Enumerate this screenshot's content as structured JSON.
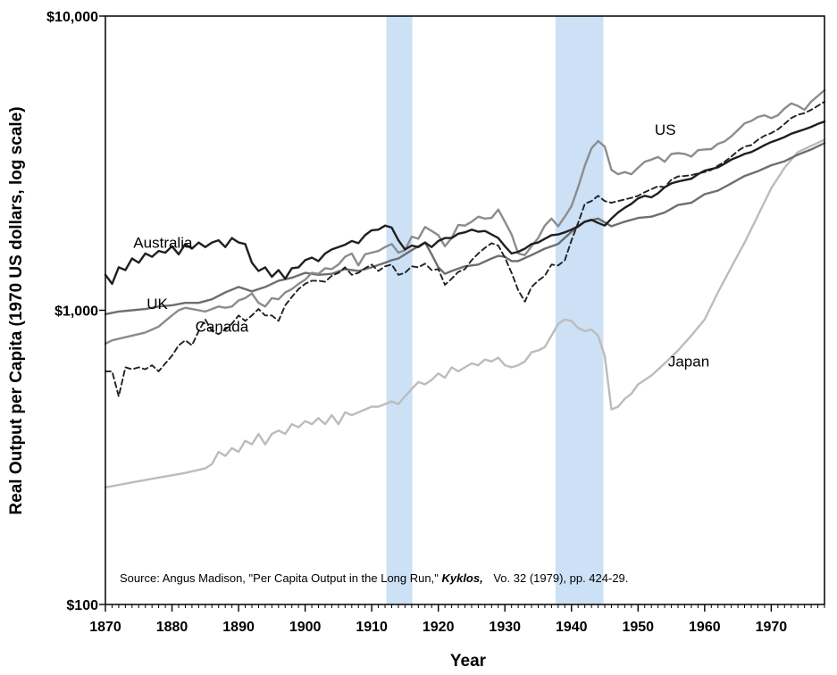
{
  "chart_data": {
    "type": "line",
    "xlabel": "Year",
    "ylabel": "Real Output per Capita (1970 US dollars, log scale)",
    "xlim": [
      1870,
      1978
    ],
    "ylim": [
      100,
      10000
    ],
    "y_scale": "log",
    "x_ticks": [
      1870,
      1880,
      1890,
      1900,
      1910,
      1920,
      1930,
      1940,
      1950,
      1960,
      1970
    ],
    "y_ticks": [
      {
        "value": 100,
        "label": "$100"
      },
      {
        "value": 1000,
        "label": "$1,000"
      },
      {
        "value": 10000,
        "label": "$10,000"
      }
    ],
    "grid": false,
    "legend": "none",
    "shaded_periods": [
      {
        "start": 1912.2,
        "end": 1916.1,
        "color": "#cce1f5"
      },
      {
        "start": 1937.6,
        "end": 1944.8,
        "color": "#cce1f5"
      }
    ],
    "series": [
      {
        "name": "Australia",
        "color": "#1f1f1f",
        "width": 2.4,
        "dash": "",
        "label_pos": [
          1874.2,
          1630
        ],
        "x": [
          1870,
          1871,
          1872,
          1873,
          1874,
          1875,
          1876,
          1877,
          1878,
          1879,
          1880,
          1881,
          1882,
          1883,
          1884,
          1885,
          1886,
          1887,
          1888,
          1889,
          1890,
          1891,
          1892,
          1893,
          1894,
          1895,
          1896,
          1897,
          1898,
          1899,
          1900,
          1901,
          1902,
          1903,
          1904,
          1905,
          1906,
          1907,
          1908,
          1909,
          1910,
          1911,
          1912,
          1913,
          1914,
          1915,
          1916,
          1917,
          1918,
          1919,
          1920,
          1921,
          1922,
          1923,
          1924,
          1925,
          1926,
          1927,
          1928,
          1929,
          1930,
          1931,
          1932,
          1933,
          1934,
          1935,
          1936,
          1937,
          1938,
          1939,
          1940,
          1941,
          1942,
          1943,
          1944,
          1945,
          1946,
          1947,
          1948,
          1949,
          1950,
          1951,
          1952,
          1953,
          1954,
          1955,
          1956,
          1957,
          1958,
          1959,
          1960,
          1961,
          1962,
          1963,
          1964,
          1965,
          1966,
          1967,
          1968,
          1969,
          1970,
          1971,
          1972,
          1973,
          1974,
          1975,
          1976,
          1977,
          1978
        ],
        "values": [
          1320,
          1230,
          1400,
          1370,
          1500,
          1450,
          1560,
          1520,
          1590,
          1570,
          1650,
          1550,
          1680,
          1620,
          1700,
          1640,
          1700,
          1730,
          1640,
          1760,
          1700,
          1680,
          1450,
          1360,
          1400,
          1300,
          1370,
          1280,
          1390,
          1400,
          1480,
          1510,
          1470,
          1560,
          1610,
          1640,
          1670,
          1720,
          1690,
          1800,
          1870,
          1880,
          1940,
          1910,
          1730,
          1610,
          1660,
          1640,
          1700,
          1640,
          1720,
          1760,
          1760,
          1820,
          1840,
          1880,
          1850,
          1860,
          1810,
          1760,
          1650,
          1560,
          1580,
          1620,
          1680,
          1700,
          1750,
          1800,
          1810,
          1840,
          1880,
          1930,
          2000,
          2030,
          1980,
          1940,
          2050,
          2150,
          2230,
          2300,
          2400,
          2450,
          2420,
          2500,
          2620,
          2700,
          2740,
          2770,
          2800,
          2900,
          2980,
          3020,
          3060,
          3150,
          3250,
          3320,
          3400,
          3450,
          3540,
          3640,
          3730,
          3800,
          3880,
          3980,
          4050,
          4120,
          4200,
          4300,
          4380
        ]
      },
      {
        "name": "US",
        "color": "#8c8c8c",
        "width": 2.4,
        "dash": "",
        "label_pos": [
          1952.5,
          3950
        ],
        "x": [
          1870,
          1871,
          1872,
          1873,
          1874,
          1875,
          1876,
          1877,
          1878,
          1879,
          1880,
          1881,
          1882,
          1883,
          1884,
          1885,
          1886,
          1887,
          1888,
          1889,
          1890,
          1891,
          1892,
          1893,
          1894,
          1895,
          1896,
          1897,
          1898,
          1899,
          1900,
          1901,
          1902,
          1903,
          1904,
          1905,
          1906,
          1907,
          1908,
          1909,
          1910,
          1911,
          1912,
          1913,
          1914,
          1915,
          1916,
          1917,
          1918,
          1919,
          1920,
          1921,
          1922,
          1923,
          1924,
          1925,
          1926,
          1927,
          1928,
          1929,
          1930,
          1931,
          1932,
          1933,
          1934,
          1935,
          1936,
          1937,
          1938,
          1939,
          1940,
          1941,
          1942,
          1943,
          1944,
          1945,
          1946,
          1947,
          1948,
          1949,
          1950,
          1951,
          1952,
          1953,
          1954,
          1955,
          1956,
          1957,
          1958,
          1959,
          1960,
          1961,
          1962,
          1963,
          1964,
          1965,
          1966,
          1967,
          1968,
          1969,
          1970,
          1971,
          1972,
          1973,
          1974,
          1975,
          1976,
          1977,
          1978
        ],
        "values": [
          770,
          790,
          800,
          810,
          820,
          830,
          840,
          860,
          880,
          920,
          960,
          1000,
          1020,
          1010,
          1000,
          990,
          1010,
          1030,
          1020,
          1030,
          1080,
          1100,
          1140,
          1060,
          1030,
          1100,
          1090,
          1150,
          1180,
          1230,
          1270,
          1340,
          1330,
          1390,
          1380,
          1430,
          1520,
          1560,
          1420,
          1550,
          1570,
          1590,
          1640,
          1680,
          1570,
          1600,
          1780,
          1750,
          1920,
          1860,
          1800,
          1650,
          1760,
          1950,
          1940,
          2000,
          2080,
          2050,
          2060,
          2200,
          2000,
          1810,
          1560,
          1540,
          1650,
          1760,
          1940,
          2050,
          1930,
          2080,
          2260,
          2620,
          3100,
          3550,
          3760,
          3600,
          3000,
          2900,
          2950,
          2900,
          3050,
          3200,
          3250,
          3320,
          3200,
          3400,
          3420,
          3400,
          3330,
          3500,
          3520,
          3530,
          3680,
          3750,
          3900,
          4100,
          4320,
          4400,
          4540,
          4600,
          4500,
          4600,
          4850,
          5050,
          4950,
          4800,
          5120,
          5350,
          5600
        ]
      },
      {
        "name": "UK",
        "color": "#6e6e6e",
        "width": 2.4,
        "dash": "",
        "label_pos": [
          1876.2,
          1010
        ],
        "x": [
          1870,
          1872,
          1874,
          1876,
          1878,
          1880,
          1882,
          1884,
          1886,
          1888,
          1890,
          1892,
          1894,
          1896,
          1898,
          1900,
          1902,
          1904,
          1906,
          1908,
          1910,
          1912,
          1913,
          1914,
          1916,
          1918,
          1919,
          1920,
          1921,
          1922,
          1924,
          1926,
          1928,
          1929,
          1930,
          1931,
          1932,
          1934,
          1936,
          1938,
          1940,
          1942,
          1944,
          1946,
          1948,
          1950,
          1952,
          1954,
          1956,
          1958,
          1960,
          1962,
          1964,
          1966,
          1968,
          1970,
          1972,
          1974,
          1976,
          1978
        ],
        "values": [
          970,
          990,
          1000,
          1010,
          1030,
          1040,
          1060,
          1060,
          1090,
          1150,
          1200,
          1160,
          1200,
          1260,
          1290,
          1340,
          1320,
          1330,
          1380,
          1360,
          1400,
          1450,
          1480,
          1500,
          1600,
          1700,
          1550,
          1400,
          1330,
          1360,
          1410,
          1430,
          1500,
          1530,
          1520,
          1470,
          1470,
          1540,
          1620,
          1680,
          1850,
          2000,
          2050,
          1930,
          2000,
          2060,
          2080,
          2150,
          2280,
          2320,
          2480,
          2550,
          2700,
          2860,
          2970,
          3110,
          3210,
          3380,
          3520,
          3700
        ]
      },
      {
        "name": "Canada",
        "color": "#222222",
        "width": 1.9,
        "dash": "6 4",
        "label_pos": [
          1883.5,
          845
        ],
        "x": [
          1870,
          1871,
          1872,
          1873,
          1874,
          1875,
          1876,
          1877,
          1878,
          1879,
          1880,
          1881,
          1882,
          1883,
          1884,
          1885,
          1886,
          1887,
          1888,
          1889,
          1890,
          1891,
          1892,
          1893,
          1894,
          1895,
          1896,
          1897,
          1898,
          1899,
          1900,
          1901,
          1902,
          1903,
          1904,
          1905,
          1906,
          1907,
          1908,
          1909,
          1910,
          1911,
          1912,
          1913,
          1914,
          1915,
          1916,
          1917,
          1918,
          1919,
          1920,
          1921,
          1922,
          1923,
          1924,
          1925,
          1926,
          1927,
          1928,
          1929,
          1930,
          1931,
          1932,
          1933,
          1934,
          1935,
          1936,
          1937,
          1938,
          1939,
          1940,
          1941,
          1942,
          1943,
          1944,
          1945,
          1946,
          1947,
          1948,
          1949,
          1950,
          1951,
          1952,
          1953,
          1954,
          1955,
          1956,
          1957,
          1958,
          1959,
          1960,
          1961,
          1962,
          1963,
          1964,
          1965,
          1966,
          1967,
          1968,
          1969,
          1970,
          1971,
          1972,
          1973,
          1974,
          1975,
          1976,
          1977,
          1978
        ],
        "values": [
          620,
          620,
          510,
          640,
          630,
          640,
          630,
          650,
          620,
          660,
          700,
          760,
          790,
          760,
          850,
          930,
          850,
          830,
          860,
          900,
          960,
          920,
          960,
          1010,
          960,
          960,
          920,
          1040,
          1110,
          1180,
          1230,
          1260,
          1260,
          1250,
          1310,
          1340,
          1400,
          1320,
          1340,
          1390,
          1430,
          1360,
          1410,
          1430,
          1320,
          1340,
          1410,
          1400,
          1440,
          1370,
          1380,
          1220,
          1280,
          1350,
          1380,
          1480,
          1560,
          1630,
          1690,
          1660,
          1510,
          1340,
          1170,
          1070,
          1200,
          1260,
          1310,
          1430,
          1420,
          1480,
          1730,
          1980,
          2300,
          2350,
          2450,
          2350,
          2320,
          2350,
          2380,
          2410,
          2450,
          2520,
          2580,
          2640,
          2620,
          2780,
          2850,
          2860,
          2880,
          2920,
          2950,
          3000,
          3100,
          3200,
          3330,
          3480,
          3600,
          3640,
          3800,
          3920,
          4000,
          4120,
          4300,
          4500,
          4620,
          4680,
          4800,
          4950,
          5120
        ]
      },
      {
        "name": "Japan",
        "color": "#bcbcbc",
        "width": 2.4,
        "dash": "",
        "label_pos": [
          1954.5,
          645
        ],
        "x": [
          1870,
          1874,
          1878,
          1882,
          1885,
          1886,
          1887,
          1888,
          1889,
          1890,
          1891,
          1892,
          1893,
          1894,
          1895,
          1896,
          1897,
          1898,
          1899,
          1900,
          1901,
          1902,
          1903,
          1904,
          1905,
          1906,
          1907,
          1908,
          1909,
          1910,
          1911,
          1912,
          1913,
          1914,
          1915,
          1916,
          1917,
          1918,
          1919,
          1920,
          1921,
          1922,
          1923,
          1924,
          1925,
          1926,
          1927,
          1928,
          1929,
          1930,
          1931,
          1932,
          1933,
          1934,
          1935,
          1936,
          1937,
          1938,
          1939,
          1940,
          1941,
          1942,
          1943,
          1944,
          1945,
          1946,
          1947,
          1948,
          1949,
          1950,
          1952,
          1954,
          1956,
          1958,
          1960,
          1962,
          1964,
          1966,
          1968,
          1970,
          1972,
          1974,
          1976,
          1978
        ],
        "values": [
          250,
          260,
          270,
          280,
          290,
          300,
          330,
          320,
          340,
          330,
          360,
          350,
          380,
          350,
          380,
          390,
          380,
          410,
          400,
          420,
          410,
          430,
          410,
          440,
          410,
          450,
          440,
          450,
          460,
          470,
          470,
          480,
          490,
          480,
          510,
          540,
          570,
          560,
          580,
          610,
          590,
          640,
          620,
          640,
          660,
          650,
          680,
          670,
          690,
          650,
          640,
          650,
          670,
          720,
          730,
          750,
          820,
          900,
          930,
          920,
          870,
          850,
          860,
          820,
          700,
          460,
          470,
          500,
          520,
          560,
          600,
          660,
          730,
          820,
          930,
          1150,
          1400,
          1700,
          2100,
          2600,
          3050,
          3450,
          3620,
          3800
        ]
      }
    ],
    "source": {
      "prefix": "Source: Angus Madison, \"Per Capita Output in the Long Run,\"",
      "journal": "Kyklos,",
      "suffix": "Vo. 32 (1979), pp. 424-29."
    }
  }
}
